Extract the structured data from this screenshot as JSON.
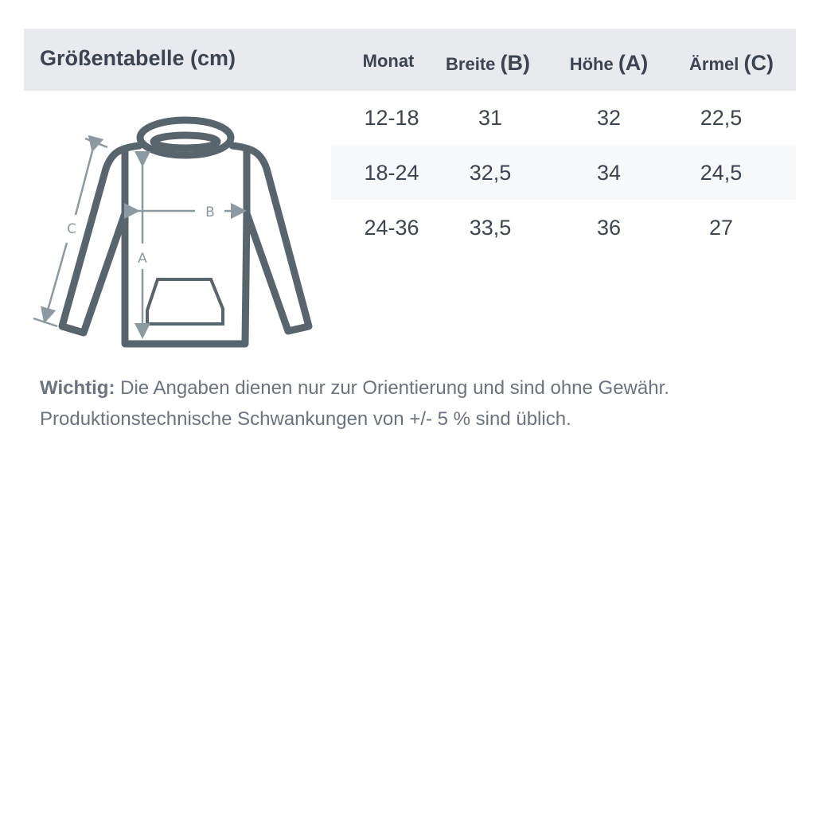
{
  "title": "Größentabelle (cm)",
  "columns": [
    {
      "label": "Monat",
      "letter": ""
    },
    {
      "label": "Breite",
      "letter": "(B)"
    },
    {
      "label": "Höhe",
      "letter": "(A)"
    },
    {
      "label": "Ärmel",
      "letter": "(C)"
    }
  ],
  "rows": [
    [
      "12-18",
      "31",
      "32",
      "22,5"
    ],
    [
      "18-24",
      "32,5",
      "34",
      "24,5"
    ],
    [
      "24-36",
      "33,5",
      "36",
      "27"
    ]
  ],
  "diagram": {
    "label_a": "A",
    "label_b": "B",
    "label_c": "C"
  },
  "note": {
    "bold": "Wichtig:",
    "line1": " Die Angaben dienen nur zur Orientierung und sind ohne Gewähr.",
    "line2": "Produktionstechnische Schwankungen von +/- 5 % sind üblich."
  },
  "colors": {
    "header_bg": "#e9eaee",
    "alt_row_bg": "#f7f8fa",
    "outline": "#59656c",
    "arrow": "#8d99a1"
  }
}
